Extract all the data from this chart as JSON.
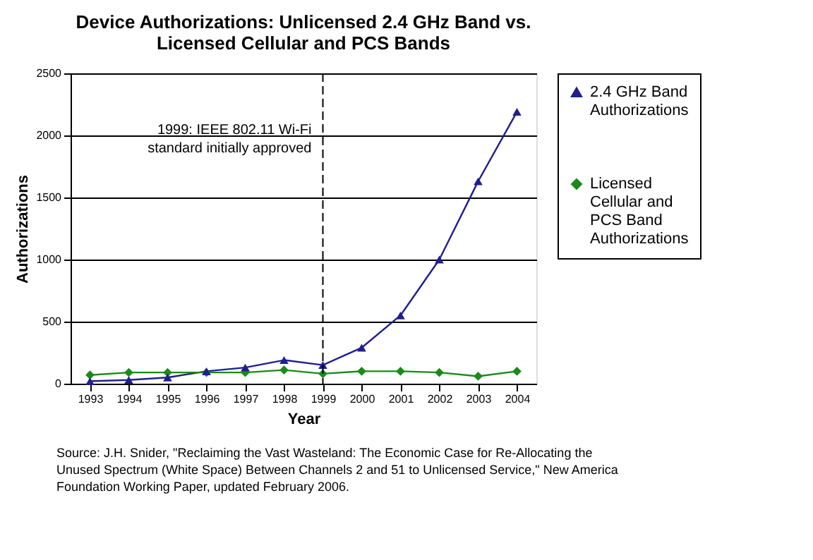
{
  "chart_data": {
    "type": "line",
    "title": "Device Authorizations: Unlicensed 2.4 GHz Band vs. Licensed Cellular and PCS Bands",
    "xlabel": "Year",
    "ylabel": "Authorizations",
    "categories": [
      "1993",
      "1994",
      "1995",
      "1996",
      "1997",
      "1998",
      "1999",
      "2000",
      "2001",
      "2002",
      "2003",
      "2004"
    ],
    "series": [
      {
        "name": "2.4 GHz Band Authorizations",
        "color": "#1f1f8f",
        "marker": "triangle",
        "values": [
          20,
          30,
          50,
          100,
          130,
          190,
          150,
          290,
          550,
          1000,
          1630,
          2190
        ]
      },
      {
        "name": "Licensed Cellular and PCS Band Authorizations",
        "color": "#1a8a1a",
        "marker": "diamond",
        "values": [
          70,
          90,
          90,
          90,
          90,
          110,
          80,
          100,
          100,
          90,
          60,
          100
        ]
      }
    ],
    "ylim": [
      0,
      2500
    ],
    "yticks": [
      0,
      500,
      1000,
      1500,
      2000,
      2500
    ],
    "grid": "y",
    "legend": "right",
    "ref_lines": [
      {
        "axis": "x",
        "value": "1999",
        "label": "1999: IEEE 802.11 Wi-Fi standard initially approved",
        "line_style": "dashed",
        "color": "#000000"
      }
    ],
    "annotations": [
      "Source: J.H. Snider, \"Reclaiming the Vast Wasteland: The Economic Case for Re-Allocating the Unused Spectrum (White Space) Between Channels 2 and 51 to Unlicensed Service,\" New America Foundation Working Paper, updated February 2006."
    ]
  }
}
